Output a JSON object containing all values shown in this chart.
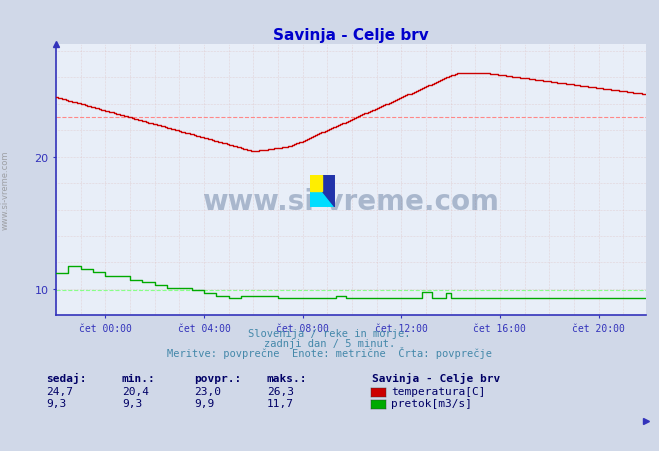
{
  "title": "Savinja - Celje brv",
  "title_color": "#0000cc",
  "bg_color": "#d0d8e8",
  "plot_bg_color": "#e8eef8",
  "axis_color": "#3333bb",
  "tick_color": "#3333bb",
  "watermark_text": "www.si-vreme.com",
  "watermark_color": "#1a3a6a",
  "subtitle_lines": [
    "Slovenija / reke in morje.",
    "zadnji dan / 5 minut.",
    "Meritve: povprečne  Enote: metrične  Črta: povprečje"
  ],
  "subtitle_color": "#4488aa",
  "legend_title": "Savinja - Celje brv",
  "legend_items": [
    "temperatura[C]",
    "pretok[m3/s]"
  ],
  "legend_colors": [
    "#cc0000",
    "#00aa00"
  ],
  "stats_headers": [
    "sedaj:",
    "min.:",
    "povpr.:",
    "maks.:"
  ],
  "stats_temp": [
    24.7,
    20.4,
    23.0,
    26.3
  ],
  "stats_flow": [
    9.3,
    9.3,
    9.9,
    11.7
  ],
  "stats_color": "#000066",
  "ylim": [
    8.0,
    28.5
  ],
  "yticks": [
    10,
    20
  ],
  "xlim": [
    0,
    287
  ],
  "xtick_positions": [
    24,
    72,
    120,
    168,
    216,
    264
  ],
  "xtick_labels": [
    "čet 00:00",
    "čet 04:00",
    "čet 08:00",
    "čet 12:00",
    "čet 16:00",
    "čet 20:00"
  ],
  "avg_temp_line": 23.0,
  "avg_flow_line": 9.9,
  "temp_line_color": "#cc0000",
  "flow_line_color": "#00aa00",
  "avg_temp_color": "#ff8888",
  "avg_flow_color": "#88ff88"
}
